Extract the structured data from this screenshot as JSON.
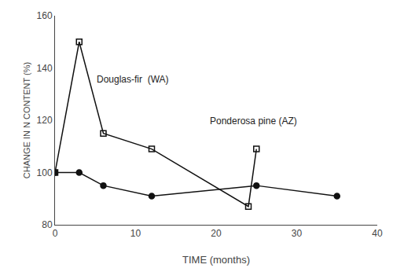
{
  "chart_data": {
    "type": "line",
    "xlabel": "TIME (months)",
    "ylabel": "CHANGE IN N CONTENT (%)",
    "series": [
      {
        "x": [
          0,
          3,
          6,
          12,
          25,
          35
        ],
        "values": [
          100,
          100,
          95,
          91,
          95,
          91
        ],
        "color": "#111111",
        "marker": "circle"
      },
      {
        "x": [
          0,
          3,
          6,
          12,
          24,
          25
        ],
        "values": [
          100,
          150,
          115,
          109,
          87,
          109
        ],
        "color": "#111111",
        "marker": "square-open"
      }
    ],
    "annotations": [
      {
        "text": "Douglas-fir  (WA)",
        "x": 5,
        "y": 133
      },
      {
        "text": "Ponderosa pine (AZ)",
        "x": 19,
        "y": 117
      }
    ],
    "xlim": [
      0,
      40
    ],
    "ylim": [
      80,
      160
    ],
    "xticks": [
      0,
      10,
      20,
      30,
      40
    ],
    "yticks": [
      80,
      100,
      120,
      140,
      160
    ],
    "grid": false
  }
}
